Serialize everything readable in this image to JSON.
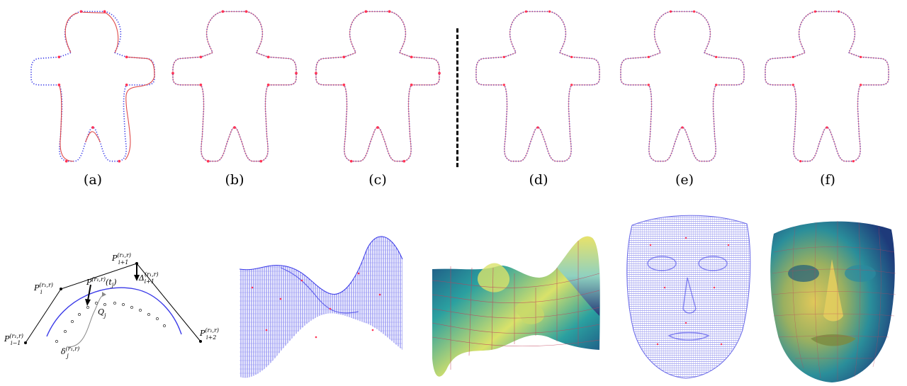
{
  "figure": {
    "top_captions": [
      "(a)",
      "(b)",
      "(c)",
      "(d)",
      "(e)",
      "(f)"
    ],
    "colors": {
      "curve_dots": "#3a3ae8",
      "fit_curve": "#e05050",
      "control_pts": "#ff3355",
      "surface_grid": "#3a3ae8",
      "divider": "#000000"
    },
    "diagram": {
      "P_i_minus_1": "P",
      "P_i_minus_1_sup": "(r₁,r)",
      "P_i_minus_1_sub": "i−1",
      "P_i": "P",
      "P_i_sup": "(r₁,r)",
      "P_i_sub": "i",
      "P_i_plus_1": "P",
      "P_i_plus_1_sup": "(r₁,r)",
      "P_i_plus_1_sub": "i+1",
      "P_i_plus_2": "P",
      "P_i_plus_2_sup": "(r₁,r)",
      "P_i_plus_2_sub": "i+2",
      "curve_point": "P",
      "curve_point_sup": "(r₁,r)",
      "curve_point_arg": "(t",
      "curve_point_arg_sub": "j",
      "curve_point_arg_close": ")",
      "delta_cap": "Δ",
      "delta_cap_sup": "(r₁,r)",
      "delta_cap_sub": "i+1",
      "Q": "Q",
      "Q_sub": "j",
      "delta_small": "δ",
      "delta_small_sup": "(r₁,r)",
      "delta_small_sub": "j"
    }
  }
}
